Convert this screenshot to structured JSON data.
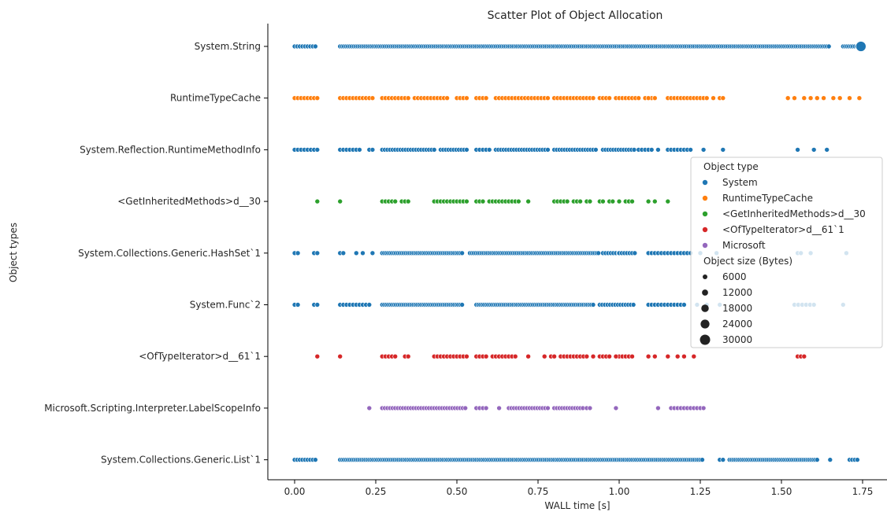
{
  "chart_data": {
    "type": "scatter",
    "title": "Scatter Plot of Object Allocation",
    "xlabel": "WALL time [s]",
    "ylabel": "Object types",
    "xlim": [
      -0.08,
      1.82
    ],
    "x_ticks": [
      0.0,
      0.25,
      0.5,
      0.75,
      1.0,
      1.25,
      1.5,
      1.75
    ],
    "x_tick_labels": [
      "0.00",
      "0.25",
      "0.50",
      "0.75",
      "1.00",
      "1.25",
      "1.50",
      "1.75"
    ],
    "categories": [
      "System.String",
      "RuntimeTypeCache",
      "System.Reflection.RuntimeMethodInfo",
      "<GetInheritedMethods>d__30",
      "System.Collections.Generic.HashSet`1",
      "System.Func`2",
      "<OfTypeIterator>d__61`1",
      "Microsoft.Scripting.Interpreter.LabelScopeInfo",
      "System.Collections.Generic.List`1"
    ],
    "grid": false,
    "legend_position": "right",
    "legend": {
      "hue_title": "Object type",
      "hue_entries": [
        {
          "label": "System",
          "color": "#1f77b4"
        },
        {
          "label": "RuntimeTypeCache",
          "color": "#ff7f0e"
        },
        {
          "label": "<GetInheritedMethods>d__30",
          "color": "#2ca02c"
        },
        {
          "label": "<OfTypeIterator>d__61`1",
          "color": "#d62728"
        },
        {
          "label": "Microsoft",
          "color": "#9467bd"
        }
      ],
      "size_title": "Object size (Bytes)",
      "size_entries": [
        6000,
        12000,
        18000,
        24000,
        30000
      ]
    },
    "series": [
      {
        "category": "System.String",
        "hue": "System",
        "ranges": [
          [
            0.0,
            0.07,
            0.008
          ],
          [
            0.14,
            1.65,
            0.006
          ],
          [
            1.69,
            1.74,
            0.006
          ]
        ],
        "x": [
          1.745
        ],
        "big_point_size": 30000
      },
      {
        "category": "RuntimeTypeCache",
        "hue": "RuntimeTypeCache",
        "ranges": [
          [
            0.0,
            0.07,
            0.01
          ],
          [
            0.14,
            0.24,
            0.01
          ],
          [
            0.27,
            0.35,
            0.01
          ],
          [
            0.37,
            0.43,
            0.01
          ],
          [
            0.44,
            0.47,
            0.01
          ],
          [
            0.5,
            0.53,
            0.01
          ],
          [
            0.56,
            0.59,
            0.01
          ],
          [
            0.62,
            0.78,
            0.01
          ],
          [
            0.8,
            0.87,
            0.01
          ],
          [
            0.88,
            0.92,
            0.01
          ],
          [
            0.94,
            0.97,
            0.01
          ],
          [
            0.99,
            1.06,
            0.01
          ],
          [
            1.08,
            1.11,
            0.01
          ],
          [
            1.15,
            1.25,
            0.01
          ]
        ],
        "x": [
          1.09,
          1.11,
          1.26,
          1.27,
          1.29,
          1.31,
          1.32,
          1.52,
          1.54,
          1.57,
          1.59,
          1.61,
          1.63,
          1.66,
          1.68,
          1.71,
          1.74
        ]
      },
      {
        "category": "System.Reflection.RuntimeMethodInfo",
        "hue": "System",
        "ranges": [
          [
            0.0,
            0.07,
            0.01
          ],
          [
            0.14,
            0.2,
            0.01
          ],
          [
            0.27,
            0.43,
            0.008
          ],
          [
            0.45,
            0.53,
            0.008
          ],
          [
            0.56,
            0.6,
            0.01
          ],
          [
            0.62,
            0.78,
            0.008
          ],
          [
            0.8,
            0.93,
            0.008
          ],
          [
            0.95,
            1.05,
            0.008
          ],
          [
            1.06,
            1.1,
            0.01
          ],
          [
            1.15,
            1.22,
            0.01
          ]
        ],
        "x": [
          0.23,
          0.24,
          1.12,
          1.26,
          1.32,
          1.55,
          1.6,
          1.64
        ]
      },
      {
        "category": "<GetInheritedMethods>d__30",
        "hue": "<GetInheritedMethods>d__30",
        "x": [
          0.07,
          0.14,
          0.27,
          0.28,
          0.29,
          0.3,
          0.31,
          0.33,
          0.34,
          0.35,
          0.43,
          0.44,
          0.45,
          0.46,
          0.47,
          0.48,
          0.49,
          0.5,
          0.51,
          0.52,
          0.53,
          0.56,
          0.57,
          0.58,
          0.6,
          0.61,
          0.62,
          0.63,
          0.64,
          0.65,
          0.66,
          0.67,
          0.68,
          0.69,
          0.72,
          0.8,
          0.81,
          0.82,
          0.83,
          0.84,
          0.86,
          0.87,
          0.88,
          0.9,
          0.91,
          0.94,
          0.95,
          0.97,
          0.98,
          1.0,
          1.02,
          1.03,
          1.04,
          1.09,
          1.11,
          1.15
        ]
      },
      {
        "category": "System.Collections.Generic.HashSet`1",
        "hue": "System",
        "ranges": [
          [
            0.27,
            0.52,
            0.006
          ],
          [
            0.54,
            0.94,
            0.006
          ],
          [
            0.95,
            1.0,
            0.008
          ],
          [
            1.0,
            1.05,
            0.008
          ],
          [
            1.09,
            1.15,
            0.01
          ],
          [
            1.16,
            1.22,
            0.01
          ]
        ],
        "x": [
          0.0,
          0.01,
          0.06,
          0.07,
          0.14,
          0.15,
          0.19,
          0.21,
          0.24,
          1.25,
          1.3,
          1.55,
          1.56,
          1.59,
          1.7
        ]
      },
      {
        "category": "System.Func`2",
        "hue": "System",
        "ranges": [
          [
            0.14,
            0.23,
            0.01
          ],
          [
            0.27,
            0.52,
            0.006
          ],
          [
            0.56,
            0.92,
            0.006
          ],
          [
            0.94,
            1.05,
            0.008
          ],
          [
            1.09,
            1.2,
            0.01
          ],
          [
            1.54,
            1.61,
            0.012
          ]
        ],
        "x": [
          0.0,
          0.01,
          0.06,
          0.07,
          1.24,
          1.27,
          1.31,
          1.69
        ]
      },
      {
        "category": "<OfTypeIterator>d__61`1",
        "hue": "<OfTypeIterator>d__61`1",
        "ranges": [
          [
            0.27,
            0.3,
            0.01
          ],
          [
            0.43,
            0.53,
            0.01
          ],
          [
            0.56,
            0.59,
            0.01
          ],
          [
            0.61,
            0.68,
            0.01
          ],
          [
            0.82,
            0.9,
            0.01
          ],
          [
            0.94,
            0.97,
            0.01
          ],
          [
            1.0,
            1.04,
            0.01
          ],
          [
            1.55,
            1.57,
            0.01
          ]
        ],
        "x": [
          0.07,
          0.14,
          0.31,
          0.34,
          0.35,
          0.72,
          0.77,
          0.79,
          0.8,
          0.92,
          0.99,
          1.09,
          1.11,
          1.15,
          1.18,
          1.2,
          1.23
        ]
      },
      {
        "category": "Microsoft.Scripting.Interpreter.LabelScopeInfo",
        "hue": "Microsoft",
        "ranges": [
          [
            0.27,
            0.53,
            0.008
          ],
          [
            0.56,
            0.59,
            0.01
          ],
          [
            0.66,
            0.78,
            0.008
          ],
          [
            0.8,
            0.89,
            0.008
          ],
          [
            1.16,
            1.26,
            0.01
          ]
        ],
        "x": [
          0.23,
          0.63,
          0.9,
          0.91,
          0.99,
          1.12
        ]
      },
      {
        "category": "System.Collections.Generic.List`1",
        "hue": "System",
        "ranges": [
          [
            0.0,
            0.07,
            0.008
          ],
          [
            0.14,
            1.26,
            0.006
          ],
          [
            1.34,
            1.61,
            0.006
          ],
          [
            1.71,
            1.74,
            0.008
          ]
        ],
        "x": [
          1.31,
          1.32,
          1.65
        ]
      }
    ]
  }
}
